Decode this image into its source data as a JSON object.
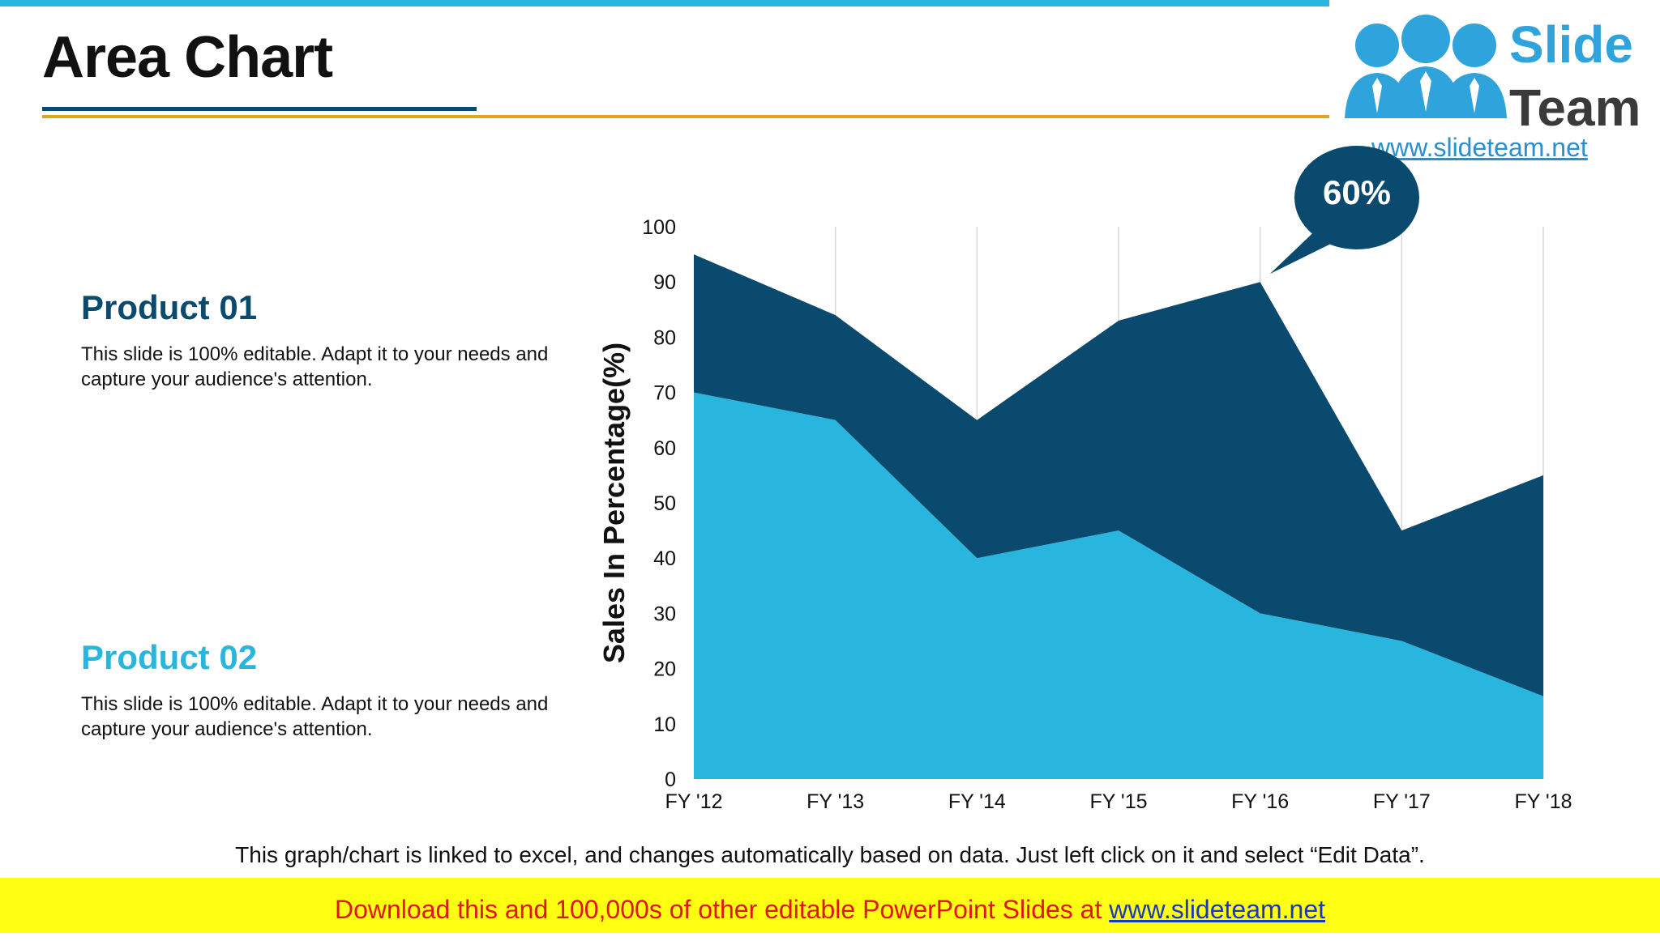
{
  "slide": {
    "title": "Area Chart",
    "caption": "This graph/chart is linked to excel, and changes automatically based on data. Just left click on it and select “Edit Data”."
  },
  "logo": {
    "word1": "Slide",
    "word2": "Team",
    "url": "www.slideteam.net"
  },
  "products": [
    {
      "name": "Product 01",
      "description": "This slide is 100% editable. Adapt it to your needs and capture your audience's attention."
    },
    {
      "name": "Product 02",
      "description": "This slide is 100% editable. Adapt it to your needs and capture your audience's attention."
    }
  ],
  "callout": {
    "label": "60%"
  },
  "footer": {
    "text": "Download this and 100,000s of other editable PowerPoint Slides at ",
    "link": "www.slideteam.net"
  },
  "colors": {
    "product01": "#0b4a6f",
    "product02": "#29b6de",
    "accent_gold": "#e3a520",
    "footer_bg": "#ffff11",
    "footer_text": "#e0161b"
  },
  "chart_data": {
    "type": "area",
    "stacked": true,
    "categories": [
      "FY '12",
      "FY '13",
      "FY '14",
      "FY '15",
      "FY '16",
      "FY '17",
      "FY '18"
    ],
    "series": [
      {
        "name": "Product 02",
        "values": [
          70,
          65,
          40,
          45,
          30,
          25,
          15
        ],
        "color": "#29b6de"
      },
      {
        "name": "Product 01",
        "values": [
          25,
          19,
          25,
          38,
          60,
          20,
          40
        ],
        "color": "#0b4a6f"
      }
    ],
    "ylabel": "Sales In Percentage(%)",
    "xlabel": "",
    "ylim": [
      0,
      100
    ],
    "yticks": [
      "0",
      "10",
      "20",
      "30",
      "40",
      "50",
      "60",
      "70",
      "80",
      "90",
      "100"
    ],
    "grid": "vertical",
    "legend": "none"
  }
}
